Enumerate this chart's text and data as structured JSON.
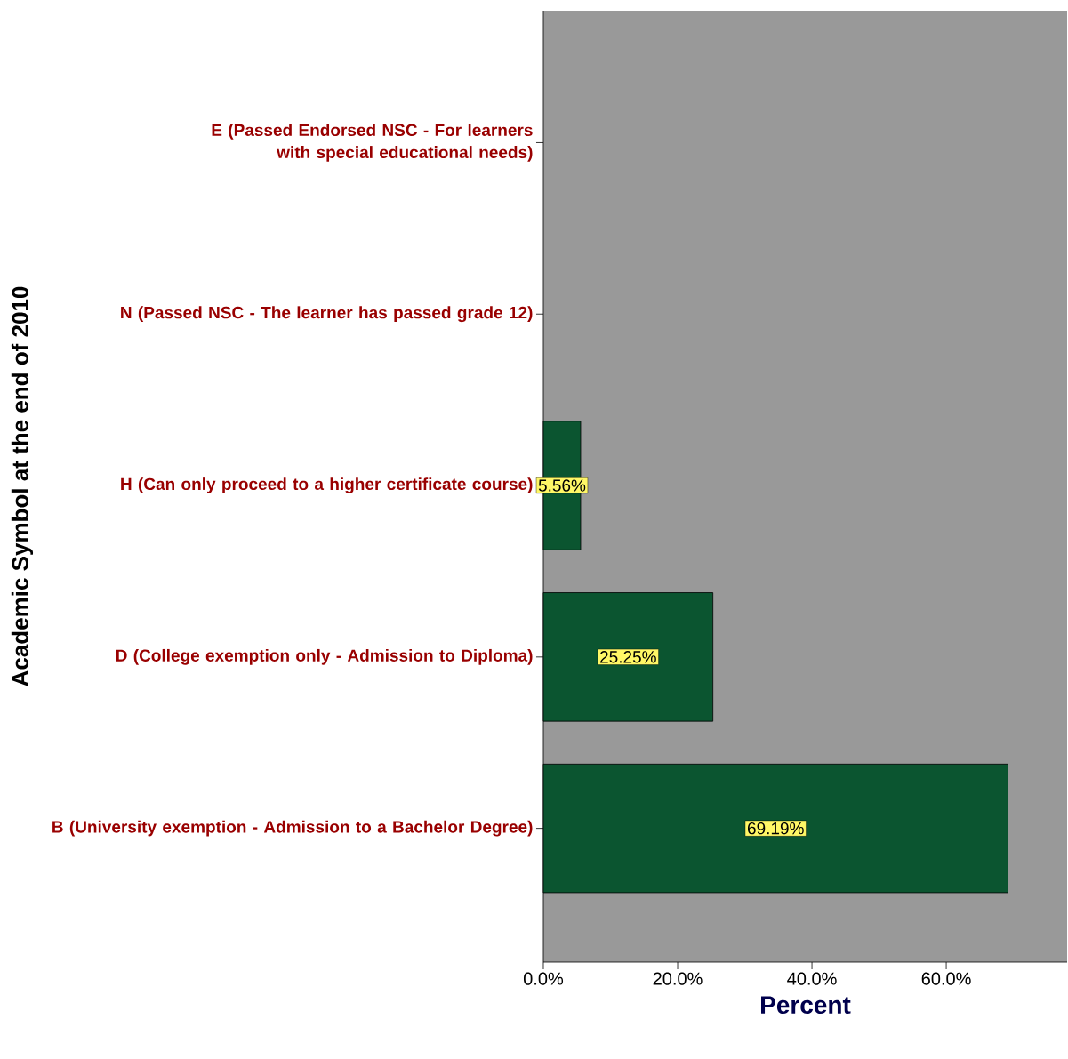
{
  "chart_data": {
    "type": "bar",
    "orientation": "horizontal",
    "ylabel": "Academic Symbol at the end of 2010",
    "xlabel": "Percent",
    "categories": [
      "E (Passed Endorsed NSC - For learners with special educational needs)",
      "N (Passed NSC - The learner has passed grade 12)",
      "H (Can only proceed to a higher certificate course)",
      "D (College exemption only - Admission to Diploma)",
      "B (University exemption - Admission to a Bachelor Degree)"
    ],
    "values": [
      null,
      null,
      5.56,
      25.25,
      69.19
    ],
    "value_labels": [
      null,
      null,
      "5.56%",
      "25.25%",
      "69.19%"
    ],
    "color": "#0b5530",
    "xlim": [
      0,
      78
    ],
    "xticks": [
      {
        "value": 0,
        "label": "0.0%"
      },
      {
        "value": 20,
        "label": "20.0%"
      },
      {
        "value": 40,
        "label": "40.0%"
      },
      {
        "value": 60,
        "label": "60.0%"
      }
    ],
    "grid": false
  }
}
